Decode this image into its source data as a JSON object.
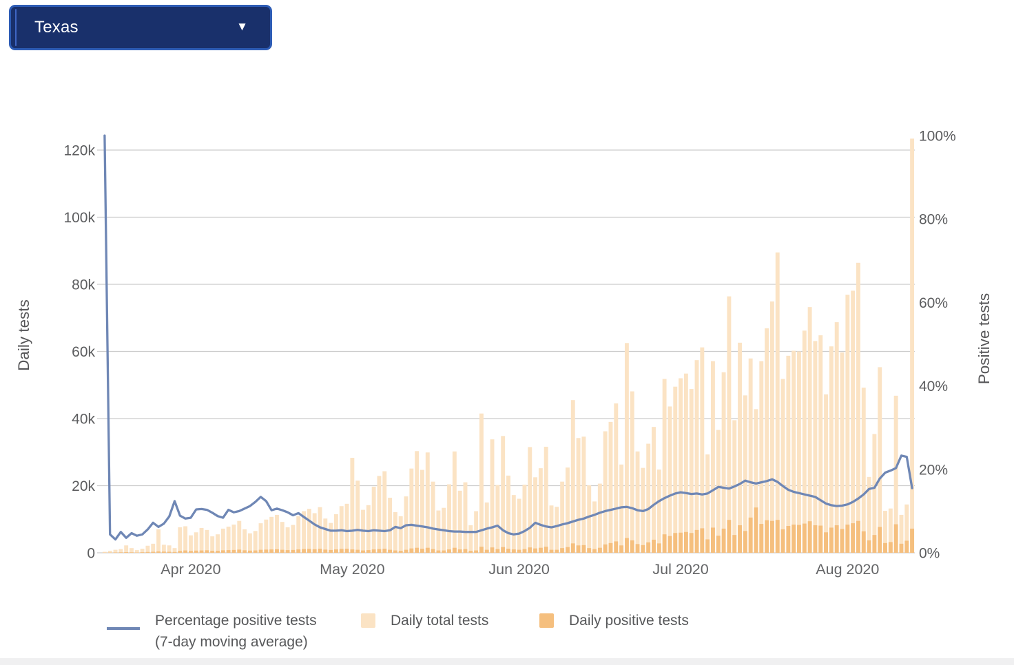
{
  "dropdown": {
    "label": "Texas",
    "caret_icon": "▼"
  },
  "legend": {
    "line_label_line1": "Percentage positive tests",
    "line_label_line2": "(7-day moving average)",
    "total_label": "Daily total tests",
    "positive_label": "Daily positive tests"
  },
  "axes": {
    "left_title": "Daily tests",
    "right_title": "Positive tests",
    "left_ticks": [
      {
        "label": "0",
        "value": 0
      },
      {
        "label": "20k",
        "value": 20000
      },
      {
        "label": "40k",
        "value": 40000
      },
      {
        "label": "60k",
        "value": 60000
      },
      {
        "label": "80k",
        "value": 80000
      },
      {
        "label": "100k",
        "value": 100000
      },
      {
        "label": "120k",
        "value": 120000
      }
    ],
    "right_ticks": [
      {
        "label": "0%",
        "value": 0
      },
      {
        "label": "20%",
        "value": 20
      },
      {
        "label": "40%",
        "value": 40
      },
      {
        "label": "60%",
        "value": 60
      },
      {
        "label": "80%",
        "value": 80
      },
      {
        "label": "100%",
        "value": 100
      }
    ],
    "month_ticks": [
      {
        "label": "Apr 2020",
        "day_index": 16
      },
      {
        "label": "May 2020",
        "day_index": 46
      },
      {
        "label": "Jun 2020",
        "day_index": 77
      },
      {
        "label": "Jul 2020",
        "day_index": 107
      },
      {
        "label": "Aug 2020",
        "day_index": 138
      }
    ]
  },
  "colors": {
    "total_bar": "#fbe3c4",
    "positive_bar": "#f5bf7e",
    "trend_line": "#6f87b5",
    "gridline": "#cccccc",
    "tick_label": "#5c5d5f",
    "axis_title": "#555557",
    "dropdown_bg": "#19306b",
    "dropdown_border": "#2d5cb5"
  },
  "chart_data": {
    "type": "bar",
    "title": "",
    "start_date": "2020-03-16",
    "end_date": "2020-08-13",
    "num_days": 151,
    "left_axis": {
      "label": "Daily tests",
      "range": [
        0,
        124300
      ],
      "ticks": [
        0,
        20000,
        40000,
        60000,
        80000,
        100000,
        120000
      ]
    },
    "right_axis": {
      "label": "Positive tests",
      "range": [
        0,
        100
      ],
      "unit": "%",
      "ticks": [
        0,
        20,
        40,
        60,
        80,
        100
      ]
    },
    "grid": "horizontal-only",
    "legend_position": "bottom",
    "series": [
      {
        "name": "Daily total tests",
        "type": "bar",
        "axis": "left",
        "color": "#fbe3c4",
        "values": [
          300,
          600,
          900,
          1100,
          2200,
          1400,
          800,
          1200,
          2100,
          2700,
          7000,
          2400,
          2200,
          1400,
          7600,
          7900,
          5200,
          6100,
          7400,
          6800,
          4900,
          5500,
          7200,
          7800,
          8400,
          9500,
          7000,
          5800,
          6500,
          8800,
          9900,
          10700,
          11300,
          9200,
          7600,
          8300,
          10900,
          12400,
          13100,
          11800,
          13600,
          10200,
          8900,
          11500,
          13900,
          14600,
          28300,
          21500,
          12800,
          14200,
          19700,
          22900,
          24300,
          16400,
          12100,
          10900,
          16800,
          25100,
          30300,
          24700,
          29900,
          21200,
          12600,
          13400,
          20400,
          30200,
          18500,
          21000,
          8200,
          12400,
          41500,
          15000,
          33800,
          20200,
          34800,
          23000,
          17200,
          16100,
          20300,
          31500,
          22500,
          25200,
          31600,
          14100,
          13700,
          21200,
          25400,
          45500,
          34200,
          34600,
          20100,
          15300,
          20600,
          36200,
          39000,
          44500,
          26300,
          62500,
          48100,
          30200,
          25300,
          32500,
          37500,
          24800,
          51800,
          43600,
          49500,
          52000,
          53400,
          48800,
          57400,
          61200,
          29300,
          57100,
          36600,
          53800,
          76400,
          39500,
          62600,
          46900,
          57900,
          42800,
          57100,
          66900,
          74900,
          89500,
          51800,
          58700,
          60200,
          60000,
          66200,
          73200,
          63100,
          64800,
          47200,
          61500,
          68700,
          59700,
          76900,
          78100,
          86400,
          49200,
          22600,
          35400,
          55300,
          12500,
          13200,
          46800,
          11300,
          14400,
          123400
        ]
      },
      {
        "name": "Daily positive tests",
        "type": "bar",
        "axis": "left",
        "color": "#f5bf7e",
        "values": [
          50,
          80,
          120,
          150,
          200,
          150,
          100,
          180,
          250,
          300,
          400,
          350,
          300,
          250,
          550,
          700,
          550,
          650,
          700,
          750,
          600,
          600,
          750,
          800,
          850,
          950,
          750,
          650,
          700,
          900,
          950,
          1000,
          1050,
          900,
          800,
          850,
          1000,
          1100,
          1150,
          1050,
          1200,
          950,
          850,
          1000,
          1150,
          1200,
          1000,
          900,
          700,
          800,
          1000,
          1100,
          1200,
          900,
          700,
          600,
          900,
          1300,
          1500,
          1200,
          1500,
          1100,
          700,
          700,
          1000,
          1500,
          1000,
          1100,
          600,
          700,
          1800,
          900,
          1600,
          1100,
          1700,
          1200,
          1000,
          900,
          1100,
          1600,
          1300,
          1500,
          1800,
          900,
          900,
          1400,
          1700,
          2800,
          2200,
          2300,
          1400,
          1100,
          1500,
          2500,
          2900,
          3400,
          2200,
          4400,
          3700,
          2600,
          2300,
          3100,
          3900,
          2800,
          5500,
          5000,
          5900,
          6000,
          6200,
          5900,
          6800,
          7300,
          4000,
          7500,
          5100,
          7200,
          9800,
          5300,
          8200,
          6500,
          10500,
          13500,
          8600,
          9700,
          9500,
          9800,
          7000,
          8000,
          8400,
          8300,
          8700,
          9400,
          8200,
          8100,
          6100,
          7500,
          8200,
          7100,
          8400,
          8800,
          9500,
          6400,
          3700,
          5300,
          7700,
          2900,
          3200,
          8500,
          2700,
          3600,
          7200
        ]
      },
      {
        "name": "Percentage positive tests (7-day moving average)",
        "type": "line",
        "axis": "right",
        "unit": "%",
        "color": "#6f87b5",
        "values": [
          100,
          4.4,
          3.2,
          5.0,
          3.6,
          4.7,
          4.1,
          4.4,
          5.6,
          7.2,
          6.2,
          7.0,
          8.7,
          12.4,
          8.9,
          8.2,
          8.4,
          10.4,
          10.5,
          10.3,
          9.6,
          8.8,
          8.4,
          10.3,
          9.7,
          10.0,
          10.6,
          11.2,
          12.2,
          13.4,
          12.4,
          10.2,
          10.6,
          10.2,
          9.7,
          9.0,
          9.5,
          8.6,
          7.7,
          6.8,
          6.1,
          5.7,
          5.3,
          5.3,
          5.4,
          5.2,
          5.3,
          5.5,
          5.3,
          5.2,
          5.4,
          5.3,
          5.2,
          5.4,
          6.2,
          5.9,
          6.6,
          6.7,
          6.5,
          6.3,
          6.1,
          5.8,
          5.6,
          5.4,
          5.2,
          5.1,
          5.1,
          5.0,
          5.0,
          5.0,
          5.4,
          5.8,
          6.1,
          6.5,
          5.4,
          4.7,
          4.4,
          4.6,
          5.2,
          6.0,
          7.2,
          6.7,
          6.3,
          6.1,
          6.4,
          6.8,
          7.1,
          7.5,
          7.9,
          8.2,
          8.7,
          9.1,
          9.6,
          10.0,
          10.3,
          10.6,
          10.9,
          11.0,
          10.7,
          10.2,
          10.0,
          10.5,
          11.5,
          12.4,
          13.1,
          13.7,
          14.2,
          14.5,
          14.3,
          14.1,
          14.2,
          14.0,
          14.2,
          15.0,
          15.8,
          15.6,
          15.4,
          15.9,
          16.5,
          17.3,
          16.9,
          16.6,
          16.9,
          17.2,
          17.6,
          17.0,
          16.0,
          15.1,
          14.6,
          14.3,
          14.0,
          13.7,
          13.4,
          12.6,
          11.8,
          11.4,
          11.2,
          11.3,
          11.6,
          12.2,
          13.0,
          14.0,
          15.3,
          15.6,
          17.8,
          19.2,
          19.7,
          20.3,
          23.3,
          23.0,
          15.5
        ]
      }
    ]
  },
  "layout_note": ""
}
